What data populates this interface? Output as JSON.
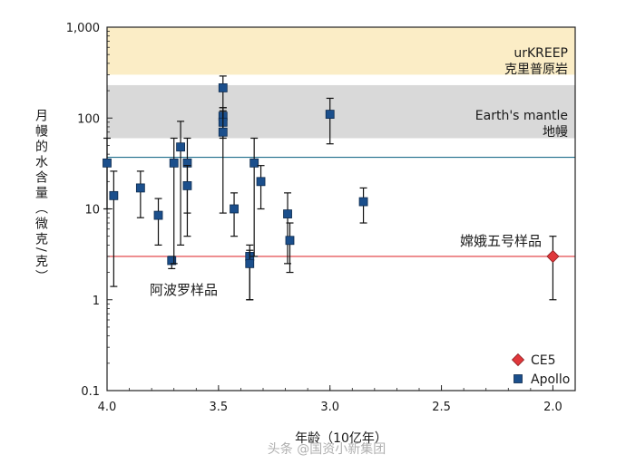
{
  "chart_data": {
    "type": "scatter",
    "x_axis": {
      "label": "年龄（10亿年）",
      "range": [
        4.0,
        1.9
      ],
      "reversed": true,
      "ticks": [
        4.0,
        3.5,
        3.0,
        2.5,
        2.0
      ],
      "tick_labels": [
        "4.0",
        "3.5",
        "3.0",
        "2.5",
        "2.0"
      ]
    },
    "y_axis": {
      "label": "月幔的水含量（微克/克）",
      "scale": "log",
      "range": [
        0.1,
        1000
      ],
      "ticks": [
        0.1,
        1,
        10,
        100,
        1000
      ],
      "tick_labels": [
        "0.1",
        "1",
        "10",
        "100",
        "1,000"
      ]
    },
    "bands": [
      {
        "label": "urKREEP",
        "sublabel": "克里普原岩",
        "y_min": 300,
        "y_max": 1000,
        "color": "#fbedc6"
      },
      {
        "label": "Earth's mantle",
        "sublabel": "地幔",
        "y_min": 60,
        "y_max": 230,
        "color": "#d9d9d9"
      }
    ],
    "reference_lines": [
      {
        "y": 37,
        "color": "#1f6e8c"
      },
      {
        "y": 3,
        "color": "#e0373b"
      }
    ],
    "series": [
      {
        "name": "CE5",
        "marker": "diamond",
        "color": "#e0373b",
        "points": [
          {
            "x": 2.0,
            "y": 3.0,
            "y_low": 1.0,
            "y_high": 5.0
          }
        ]
      },
      {
        "name": "Apollo",
        "marker": "square",
        "color": "#1b4f8c",
        "points": [
          {
            "x": 4.0,
            "y": 32,
            "y_low": 10,
            "y_high": 60
          },
          {
            "x": 3.97,
            "y": 14,
            "y_low": 1.4,
            "y_high": 26
          },
          {
            "x": 3.85,
            "y": 17,
            "y_low": 8,
            "y_high": 26
          },
          {
            "x": 3.77,
            "y": 8.5,
            "y_low": 4,
            "y_high": 13
          },
          {
            "x": 3.71,
            "y": 2.7,
            "y_low": 2.2,
            "y_high": 3.0
          },
          {
            "x": 3.7,
            "y": 32,
            "y_low": 2.5,
            "y_high": 60
          },
          {
            "x": 3.67,
            "y": 48,
            "y_low": 4,
            "y_high": 92
          },
          {
            "x": 3.64,
            "y": 32,
            "y_low": 5,
            "y_high": 60
          },
          {
            "x": 3.64,
            "y": 18,
            "y_low": 9,
            "y_high": 30
          },
          {
            "x": 3.48,
            "y": 215,
            "y_low": 130,
            "y_high": 290
          },
          {
            "x": 3.48,
            "y": 105,
            "y_low": 70,
            "y_high": 130
          },
          {
            "x": 3.48,
            "y": 90,
            "y_low": 60,
            "y_high": 120
          },
          {
            "x": 3.48,
            "y": 70,
            "y_low": 9,
            "y_high": 130
          },
          {
            "x": 3.43,
            "y": 10,
            "y_low": 5,
            "y_high": 15
          },
          {
            "x": 3.36,
            "y": 3.0,
            "y_low": 1.0,
            "y_high": 4.0
          },
          {
            "x": 3.36,
            "y": 2.5,
            "y_low": 1.0,
            "y_high": 3.5
          },
          {
            "x": 3.34,
            "y": 32,
            "y_low": 3,
            "y_high": 60
          },
          {
            "x": 3.31,
            "y": 20,
            "y_low": 10,
            "y_high": 30
          },
          {
            "x": 3.19,
            "y": 8.8,
            "y_low": 2.5,
            "y_high": 15
          },
          {
            "x": 3.18,
            "y": 4.5,
            "y_low": 2.0,
            "y_high": 7
          },
          {
            "x": 3.0,
            "y": 110,
            "y_low": 52,
            "y_high": 165
          },
          {
            "x": 2.85,
            "y": 12,
            "y_low": 7,
            "y_high": 17
          }
        ]
      }
    ],
    "annotations": [
      {
        "text": "嫦娥五号样品",
        "color": "#e0373b"
      },
      {
        "text": "阿波罗样品",
        "color": "#1b4f8c"
      }
    ],
    "legend": {
      "position": "bottom-right",
      "entries": [
        "CE5",
        "Apollo"
      ]
    }
  },
  "watermark": "头条 @国资小新集团"
}
